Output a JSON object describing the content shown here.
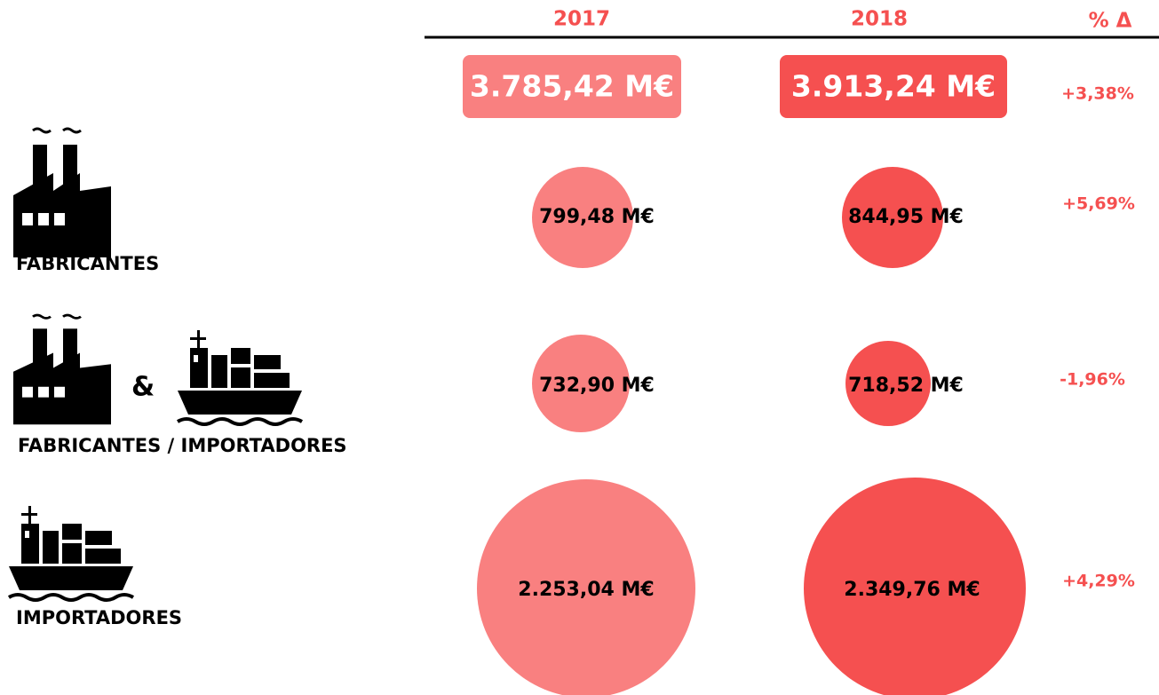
{
  "header": {
    "year1": "2017",
    "year2": "2018",
    "change": "% Δ"
  },
  "total": {
    "v2017": "3.785,42 M€",
    "v2018": "3.913,24 M€",
    "change": "+3,38%"
  },
  "rows": [
    {
      "label": "FABRICANTES",
      "v2017": "799,48 M€",
      "v2018": "844,95 M€",
      "change": "+5,69%"
    },
    {
      "label": "FABRICANTES / IMPORTADORES",
      "connector": "&",
      "v2017": "732,90 M€",
      "v2018": "718,52 M€",
      "change": "-1,96%"
    },
    {
      "label": "IMPORTADORES",
      "v2017": "2.253,04 M€",
      "v2018": "2.349,76 M€",
      "change": "+4,29%"
    }
  ]
}
